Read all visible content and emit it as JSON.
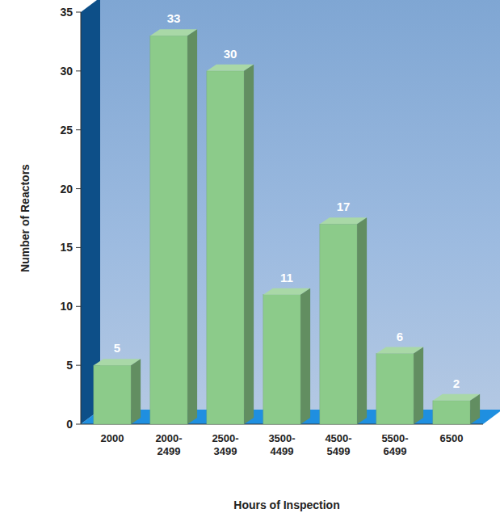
{
  "chart_data": {
    "type": "bar",
    "x_label": "Hours of Inspection",
    "y_label": "Number of Reactors",
    "categories": [
      "2000",
      "2000-2499",
      "2500-3499",
      "3500-4499",
      "4500-5499",
      "5500-6499",
      "6500"
    ],
    "values": [
      5,
      33,
      30,
      11,
      17,
      6,
      2
    ],
    "color": "#8ccb8a",
    "ylim": [
      0,
      35
    ],
    "yticks": [
      0,
      5,
      10,
      15,
      20,
      25,
      30,
      35
    ],
    "grid": false,
    "data_labels": true
  }
}
